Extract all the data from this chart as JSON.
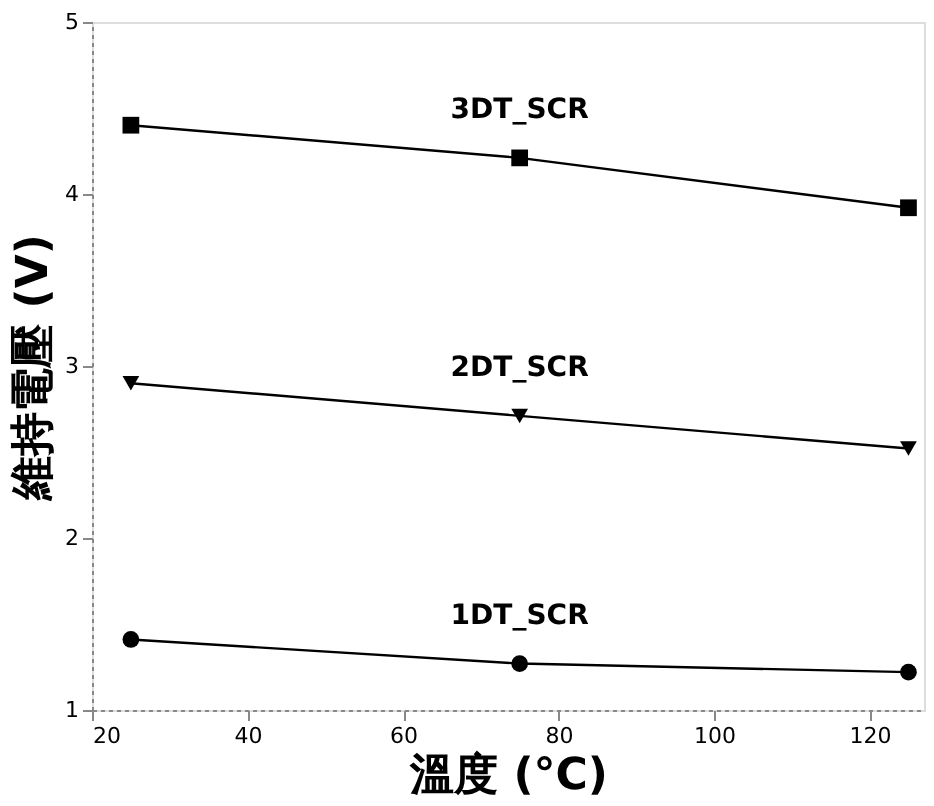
{
  "chart_data": {
    "type": "line",
    "xlabel": "溫度 (°C)",
    "ylabel": "維持電壓 (V)",
    "x": [
      25,
      75,
      125
    ],
    "series": [
      {
        "name": "3DT_SCR",
        "color": "#000000",
        "marker": "square",
        "values": [
          4.4,
          4.21,
          3.92
        ]
      },
      {
        "name": "2DT_SCR",
        "color": "#000000",
        "marker": "triangle",
        "values": [
          2.9,
          2.71,
          2.52
        ]
      },
      {
        "name": "1DT_SCR",
        "color": "#000000",
        "marker": "circle",
        "values": [
          1.41,
          1.27,
          1.22
        ]
      }
    ],
    "xlim": [
      20,
      127
    ],
    "xticks": [
      20,
      40,
      60,
      80,
      100,
      120
    ],
    "ylim": [
      1,
      5
    ],
    "yticks": [
      1,
      2,
      3,
      4,
      5
    ],
    "grid": false
  }
}
